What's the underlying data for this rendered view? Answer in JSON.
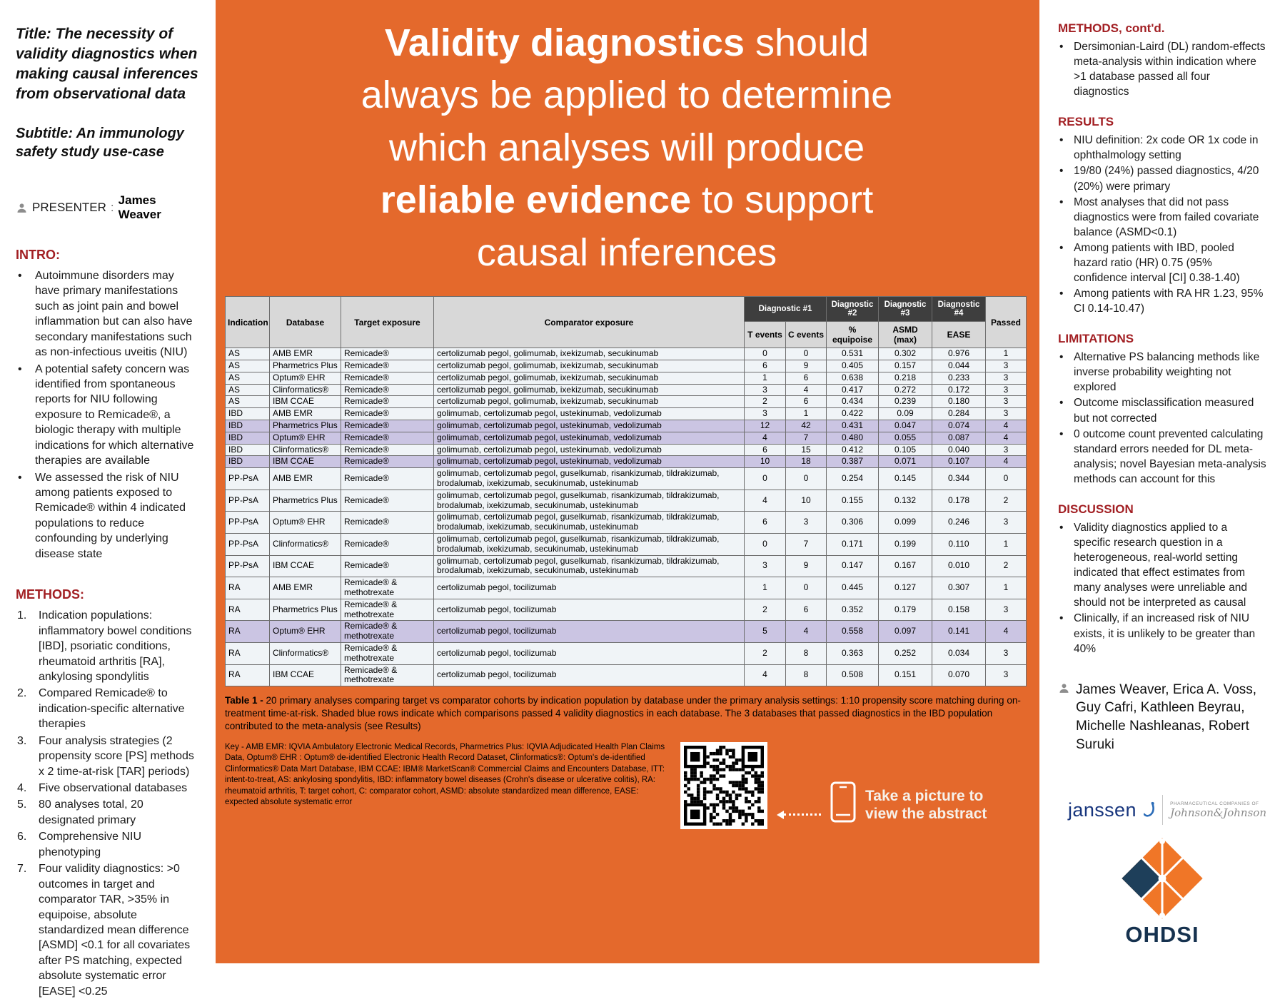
{
  "colors": {
    "orange": "#E4692C",
    "dark_red": "#A21F23",
    "shaded_row": "#CBC5E3",
    "row_bg": "#F0F4F7",
    "header_dark": "#3E3E3E",
    "header_gray": "#D8D8D8",
    "janssen_blue": "#17357D",
    "ohdsi_navy": "#16324F"
  },
  "left": {
    "title": "Title: The necessity of validity diagnostics when making causal inferences from observational data",
    "subtitle": "Subtitle: An immunology safety study use-case",
    "presenter_label": "PRESENTER",
    "presenter_name": "James Weaver",
    "intro_heading": "INTRO:",
    "intro_bullets": [
      "Autoimmune disorders may have primary manifestations such as joint pain and bowel inflammation but can also have secondary manifestations such as non-infectious uveitis (NIU)",
      "A potential safety concern was identified from spontaneous reports for NIU following exposure to Remicade®, a biologic therapy with multiple indications for which alternative therapies are available",
      "We assessed the risk of NIU among patients exposed to Remicade® within 4 indicated populations to reduce confounding by underlying disease state"
    ],
    "methods_heading": "METHODS:",
    "methods_items": [
      "Indication populations: inflammatory bowel conditions [IBD], psoriatic conditions, rheumatoid arthritis [RA], ankylosing spondylitis",
      "Compared Remicade® to indication-specific alternative therapies",
      "Four analysis strategies (2 propensity score [PS] methods x 2 time-at-risk [TAR] periods)",
      "Five observational databases",
      "80 analyses total, 20 designated primary",
      "Comprehensive NIU phenotyping",
      "Four validity diagnostics: >0 outcomes in target and comparator TAR, >35% in equipoise, absolute standardized mean difference [ASMD] <0.1 for all covariates after PS matching, expected absolute systematic error [EASE] <0.25"
    ]
  },
  "center": {
    "headline_lines": [
      [
        {
          "text": "Validity diagnostics",
          "bold": true
        },
        {
          "text": " should",
          "bold": false
        }
      ],
      [
        {
          "text": "always be applied to determine",
          "bold": false
        }
      ],
      [
        {
          "text": "which analyses will produce",
          "bold": false
        }
      ],
      [
        {
          "text": "reliable evidence",
          "bold": true
        },
        {
          "text": " to support",
          "bold": false
        }
      ],
      [
        {
          "text": "causal inferences",
          "bold": false
        }
      ]
    ],
    "table": {
      "col_headers_left": [
        "Indication",
        "Database",
        "Target exposure",
        "Comparator exposure"
      ],
      "diag_groups": [
        {
          "label": "Diagnostic #1",
          "subs": [
            "T events",
            "C events"
          ]
        },
        {
          "label": "Diagnostic #2",
          "subs": [
            "% equipoise"
          ]
        },
        {
          "label": "Diagnostic #3",
          "subs": [
            "ASMD (max)"
          ]
        },
        {
          "label": "Diagnostic #4",
          "subs": [
            "EASE"
          ]
        }
      ],
      "passed_header": "Passed",
      "rows": [
        {
          "indication": "AS",
          "database": "AMB EMR",
          "target": "Remicade®",
          "comparator": "certolizumab pegol, golimumab, ixekizumab, secukinumab",
          "t": "0",
          "c": "0",
          "equipoise": "0.531",
          "asmd": "0.302",
          "ease": "0.976",
          "passed": "1",
          "shaded": false
        },
        {
          "indication": "AS",
          "database": "Pharmetrics Plus",
          "target": "Remicade®",
          "comparator": "certolizumab pegol, golimumab, ixekizumab, secukinumab",
          "t": "6",
          "c": "9",
          "equipoise": "0.405",
          "asmd": "0.157",
          "ease": "0.044",
          "passed": "3",
          "shaded": false
        },
        {
          "indication": "AS",
          "database": "Optum® EHR",
          "target": "Remicade®",
          "comparator": "certolizumab pegol, golimumab, ixekizumab, secukinumab",
          "t": "1",
          "c": "6",
          "equipoise": "0.638",
          "asmd": "0.218",
          "ease": "0.233",
          "passed": "3",
          "shaded": false
        },
        {
          "indication": "AS",
          "database": "Clinformatics®",
          "target": "Remicade®",
          "comparator": "certolizumab pegol, golimumab, ixekizumab, secukinumab",
          "t": "3",
          "c": "4",
          "equipoise": "0.417",
          "asmd": "0.272",
          "ease": "0.172",
          "passed": "3",
          "shaded": false
        },
        {
          "indication": "AS",
          "database": "IBM CCAE",
          "target": "Remicade®",
          "comparator": "certolizumab pegol, golimumab, ixekizumab, secukinumab",
          "t": "2",
          "c": "6",
          "equipoise": "0.434",
          "asmd": "0.239",
          "ease": "0.180",
          "passed": "3",
          "shaded": false
        },
        {
          "indication": "IBD",
          "database": "AMB EMR",
          "target": "Remicade®",
          "comparator": "golimumab, certolizumab pegol, ustekinumab, vedolizumab",
          "t": "3",
          "c": "1",
          "equipoise": "0.422",
          "asmd": "0.09",
          "ease": "0.284",
          "passed": "3",
          "shaded": false
        },
        {
          "indication": "IBD",
          "database": "Pharmetrics Plus",
          "target": "Remicade®",
          "comparator": "golimumab, certolizumab pegol, ustekinumab, vedolizumab",
          "t": "12",
          "c": "42",
          "equipoise": "0.431",
          "asmd": "0.047",
          "ease": "0.074",
          "passed": "4",
          "shaded": true
        },
        {
          "indication": "IBD",
          "database": "Optum® EHR",
          "target": "Remicade®",
          "comparator": "golimumab, certolizumab pegol, ustekinumab, vedolizumab",
          "t": "4",
          "c": "7",
          "equipoise": "0.480",
          "asmd": "0.055",
          "ease": "0.087",
          "passed": "4",
          "shaded": true
        },
        {
          "indication": "IBD",
          "database": "Clinformatics®",
          "target": "Remicade®",
          "comparator": "golimumab, certolizumab pegol, ustekinumab, vedolizumab",
          "t": "6",
          "c": "15",
          "equipoise": "0.412",
          "asmd": "0.105",
          "ease": "0.040",
          "passed": "3",
          "shaded": false
        },
        {
          "indication": "IBD",
          "database": "IBM CCAE",
          "target": "Remicade®",
          "comparator": "golimumab, certolizumab pegol, ustekinumab, vedolizumab",
          "t": "10",
          "c": "18",
          "equipoise": "0.387",
          "asmd": "0.071",
          "ease": "0.107",
          "passed": "4",
          "shaded": true
        },
        {
          "indication": "PP-PsA",
          "database": "AMB EMR",
          "target": "Remicade®",
          "comparator": "golimumab, certolizumab pegol, guselkumab, risankizumab, tildrakizumab, brodalumab, ixekizumab, secukinumab, ustekinumab",
          "t": "0",
          "c": "0",
          "equipoise": "0.254",
          "asmd": "0.145",
          "ease": "0.344",
          "passed": "0",
          "shaded": false
        },
        {
          "indication": "PP-PsA",
          "database": "Pharmetrics Plus",
          "target": "Remicade®",
          "comparator": "golimumab, certolizumab pegol, guselkumab, risankizumab, tildrakizumab, brodalumab, ixekizumab, secukinumab, ustekinumab",
          "t": "4",
          "c": "10",
          "equipoise": "0.155",
          "asmd": "0.132",
          "ease": "0.178",
          "passed": "2",
          "shaded": false
        },
        {
          "indication": "PP-PsA",
          "database": "Optum® EHR",
          "target": "Remicade®",
          "comparator": "golimumab, certolizumab pegol, guselkumab, risankizumab, tildrakizumab, brodalumab, ixekizumab, secukinumab, ustekinumab",
          "t": "6",
          "c": "3",
          "equipoise": "0.306",
          "asmd": "0.099",
          "ease": "0.246",
          "passed": "3",
          "shaded": false
        },
        {
          "indication": "PP-PsA",
          "database": "Clinformatics®",
          "target": "Remicade®",
          "comparator": "golimumab, certolizumab pegol, guselkumab, risankizumab, tildrakizumab, brodalumab, ixekizumab, secukinumab, ustekinumab",
          "t": "0",
          "c": "7",
          "equipoise": "0.171",
          "asmd": "0.199",
          "ease": "0.110",
          "passed": "1",
          "shaded": false
        },
        {
          "indication": "PP-PsA",
          "database": "IBM CCAE",
          "target": "Remicade®",
          "comparator": "golimumab, certolizumab pegol, guselkumab, risankizumab, tildrakizumab, brodalumab, ixekizumab, secukinumab, ustekinumab",
          "t": "3",
          "c": "9",
          "equipoise": "0.147",
          "asmd": "0.167",
          "ease": "0.010",
          "passed": "2",
          "shaded": false
        },
        {
          "indication": "RA",
          "database": "AMB EMR",
          "target": "Remicade® & methotrexate",
          "comparator": "certolizumab pegol, tocilizumab",
          "t": "1",
          "c": "0",
          "equipoise": "0.445",
          "asmd": "0.127",
          "ease": "0.307",
          "passed": "1",
          "shaded": false
        },
        {
          "indication": "RA",
          "database": "Pharmetrics Plus",
          "target": "Remicade® & methotrexate",
          "comparator": "certolizumab pegol, tocilizumab",
          "t": "2",
          "c": "6",
          "equipoise": "0.352",
          "asmd": "0.179",
          "ease": "0.158",
          "passed": "3",
          "shaded": false
        },
        {
          "indication": "RA",
          "database": "Optum® EHR",
          "target": "Remicade® & methotrexate",
          "comparator": "certolizumab pegol, tocilizumab",
          "t": "5",
          "c": "4",
          "equipoise": "0.558",
          "asmd": "0.097",
          "ease": "0.141",
          "passed": "4",
          "shaded": true
        },
        {
          "indication": "RA",
          "database": "Clinformatics®",
          "target": "Remicade® & methotrexate",
          "comparator": "certolizumab pegol, tocilizumab",
          "t": "2",
          "c": "8",
          "equipoise": "0.363",
          "asmd": "0.252",
          "ease": "0.034",
          "passed": "3",
          "shaded": false
        },
        {
          "indication": "RA",
          "database": "IBM CCAE",
          "target": "Remicade® & methotrexate",
          "comparator": "certolizumab pegol, tocilizumab",
          "t": "4",
          "c": "8",
          "equipoise": "0.508",
          "asmd": "0.151",
          "ease": "0.070",
          "passed": "3",
          "shaded": false
        }
      ]
    },
    "caption_bold": "Table 1 -",
    "caption_text": " 20 primary analyses comparing target vs comparator cohorts by indication population by database under the primary analysis settings: 1:10 propensity score matching during on-treatment time-at-risk. Shaded blue rows indicate which comparisons passed 4 validity diagnostics in each database. The 3 databases that passed diagnostics in the IBD population contributed to the meta-analysis (see Results)",
    "key_text": "Key - AMB EMR: IQVIA Ambulatory Electronic Medical Records, Pharmetrics Plus: IQVIA Adjudicated Health Plan Claims Data, Optum® EHR : Optum® de-identified Electronic Health Record Dataset, Clinformatics®: Optum's de-identified Clinformatics® Data Mart Database, IBM CCAE: IBM® MarketScan® Commercial Claims and Encounters Database, ITT: intent-to-treat, AS: ankylosing spondylitis, IBD: inflammatory bowel diseases (Crohn's disease or ulcerative colitis), RA: rheumatoid arthritis, T: target cohort, C: comparator cohort, ASMD: absolute standardized mean difference, EASE: expected absolute systematic error",
    "qr_cta": "Take a picture to view the abstract"
  },
  "right": {
    "sections": [
      {
        "heading": "METHODS, cont'd.",
        "bullets": [
          "Dersimonian-Laird (DL) random-effects meta-analysis within indication where >1 database passed all four diagnostics"
        ]
      },
      {
        "heading": "RESULTS",
        "bullets": [
          "NIU definition: 2x code OR 1x code in ophthalmology setting",
          "19/80 (24%) passed diagnostics, 4/20 (20%) were primary",
          "Most analyses that did not pass diagnostics were from failed covariate balance (ASMD<0.1)",
          "Among patients with IBD, pooled hazard ratio (HR) 0.75 (95% confidence interval [CI] 0.38-1.40)",
          "Among patients with RA HR 1.23, 95% CI 0.14-10.47)"
        ]
      },
      {
        "heading": "LIMITATIONS",
        "bullets": [
          "Alternative PS balancing methods like inverse probability weighting not explored",
          "Outcome misclassification measured but not corrected",
          "0 outcome count prevented calculating standard errors needed for DL meta-analysis; novel Bayesian meta-analysis methods can account for this"
        ]
      },
      {
        "heading": "DISCUSSION",
        "bullets": [
          "Validity diagnostics applied to a specific research question in a heterogeneous, real-world setting indicated that effect estimates from many analyses were unreliable and should not be interpreted as causal",
          "Clinically, if an increased risk of NIU exists, it is unlikely to be greater than 40%"
        ]
      }
    ],
    "authors": "James Weaver, Erica A. Voss, Guy Cafri, Kathleen Beyrau, Michelle Nashleanas, Robert Suruki",
    "janssen_label": "janssen",
    "jnj_small": "PHARMACEUTICAL COMPANIES OF",
    "jnj_script": "Johnson&Johnson",
    "ohdsi_label": "OHDSI"
  }
}
